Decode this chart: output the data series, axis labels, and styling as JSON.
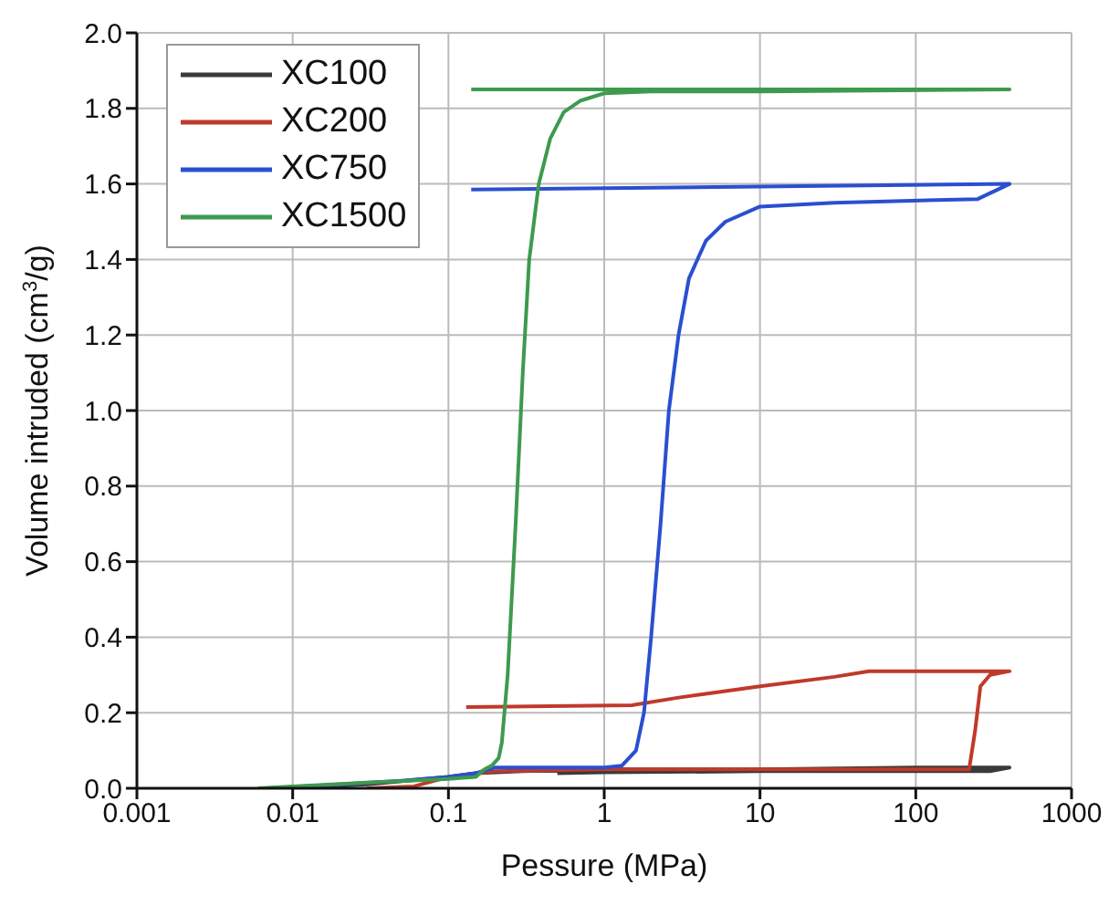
{
  "chart_data": {
    "type": "line",
    "xlabel": "Pessure (MPa)",
    "ylabel": "Volume intruded (cm$^{3}$/g)",
    "log": "x",
    "grid": true,
    "legend": "top left",
    "marker": "none",
    "line_style": "solid",
    "xlim": [
      0.001,
      1000
    ],
    "xticks": [
      0.001,
      0.01,
      0.1,
      1,
      10,
      100,
      1000
    ],
    "ylim": [
      0,
      2
    ],
    "yticks": [
      {
        "value": 0,
        "label": "0.0"
      },
      {
        "value": 0.2,
        "label": "0.2"
      },
      {
        "value": 0.4,
        "label": "0.4"
      },
      {
        "value": 0.6,
        "label": "0.6"
      },
      {
        "value": 0.8,
        "label": "0.8"
      },
      {
        "value": 1,
        "label": "1.0"
      },
      {
        "value": 1.2,
        "label": "1.2"
      },
      {
        "value": 1.4,
        "label": "1.4"
      },
      {
        "value": 1.6,
        "label": "1.6"
      },
      {
        "value": 1.8,
        "label": "1.8"
      },
      {
        "value": 2,
        "label": "2.0"
      }
    ],
    "series": [
      {
        "name": "XC100",
        "color": "#3a3a3a",
        "x": [
          0.01,
          0.03,
          0.1,
          0.15,
          0.3,
          1,
          10,
          100,
          400,
          300,
          10,
          1,
          0.5
        ],
        "values": [
          0,
          0.01,
          0.03,
          0.04,
          0.045,
          0.05,
          0.05,
          0.055,
          0.055,
          0.045,
          0.045,
          0.042,
          0.04
        ]
      },
      {
        "name": "XC200",
        "color": "#c0392b",
        "x": [
          0.03,
          0.06,
          0.1,
          0.15,
          0.2,
          1,
          10,
          100,
          220,
          240,
          260,
          300,
          400,
          50,
          30,
          10,
          3,
          1.5,
          0.13
        ],
        "values": [
          0,
          0.005,
          0.03,
          0.04,
          0.045,
          0.05,
          0.05,
          0.05,
          0.05,
          0.15,
          0.27,
          0.3,
          0.31,
          0.31,
          0.295,
          0.27,
          0.24,
          0.22,
          0.215
        ]
      },
      {
        "name": "XC750",
        "color": "#2a4fd0",
        "x": [
          0.007,
          0.02,
          0.05,
          0.1,
          0.15,
          0.2,
          0.5,
          1,
          1.3,
          1.6,
          1.8,
          2,
          2.3,
          2.6,
          3,
          3.5,
          4.5,
          6,
          10,
          30,
          250,
          400,
          0.14
        ],
        "values": [
          0,
          0.01,
          0.02,
          0.03,
          0.04,
          0.055,
          0.055,
          0.055,
          0.06,
          0.1,
          0.2,
          0.4,
          0.7,
          1,
          1.2,
          1.35,
          1.45,
          1.5,
          1.54,
          1.55,
          1.56,
          1.6,
          1.585
        ]
      },
      {
        "name": "XC1500",
        "color": "#3e9a4e",
        "x": [
          0.006,
          0.01,
          0.03,
          0.1,
          0.15,
          0.17,
          0.19,
          0.21,
          0.22,
          0.24,
          0.27,
          0.3,
          0.33,
          0.38,
          0.45,
          0.55,
          0.7,
          1,
          2,
          10,
          400,
          0.14
        ],
        "values": [
          0,
          0.005,
          0.015,
          0.025,
          0.03,
          0.05,
          0.06,
          0.08,
          0.12,
          0.3,
          0.7,
          1.1,
          1.4,
          1.6,
          1.72,
          1.79,
          1.82,
          1.84,
          1.845,
          1.845,
          1.85,
          1.85
        ]
      }
    ]
  }
}
